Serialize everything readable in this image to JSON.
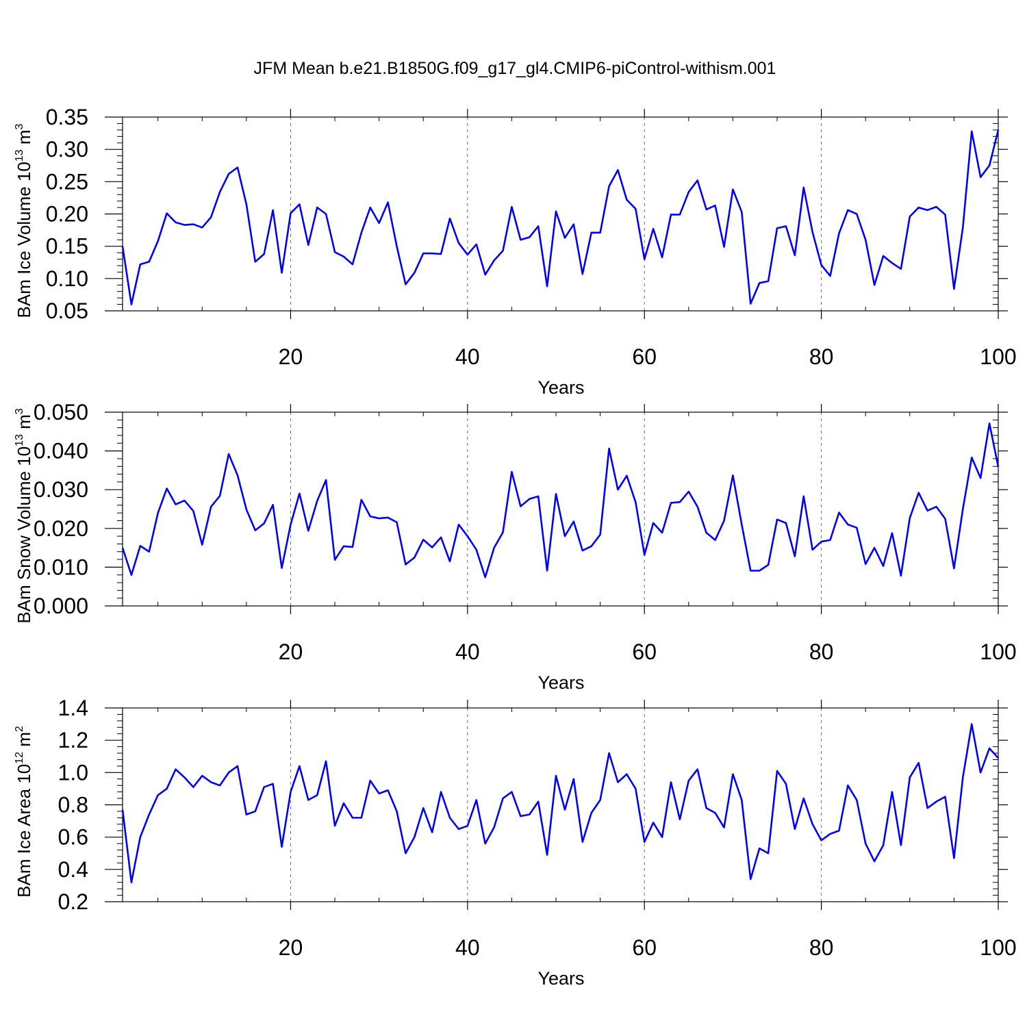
{
  "title": "JFM Mean b.e21.B1850G.f09_g17_gl4.CMIP6-piControl-withism.001",
  "colors": {
    "line": "#0000ff",
    "axis": "#000000",
    "grid": "#666666"
  },
  "chart_data": [
    {
      "type": "line",
      "title": "JFM Mean b.e21.B1850G.f09_g17_gl4.CMIP6-piControl-withism.001",
      "xlabel": "Years",
      "ylabel_main": "BAm Ice Volume 10",
      "ylabel_exp": "13",
      "ylabel_unit": " m",
      "ylabel_unit_exp": "3",
      "xlim": [
        1,
        100
      ],
      "ylim": [
        0.05,
        0.35
      ],
      "xticks": [
        20,
        40,
        60,
        80,
        100
      ],
      "xtick_labels": [
        "20",
        "40",
        "60",
        "80",
        "100"
      ],
      "yticks": [
        0.05,
        0.1,
        0.15,
        0.2,
        0.25,
        0.3,
        0.35
      ],
      "ytick_labels": [
        "0.05",
        "0.10",
        "0.15",
        "0.20",
        "0.25",
        "0.30",
        "0.35"
      ],
      "grid": "x-dashed",
      "series": [
        {
          "name": "BAm Ice Volume",
          "values": [
            0.15,
            0.06,
            0.122,
            0.126,
            0.158,
            0.201,
            0.187,
            0.183,
            0.184,
            0.179,
            0.195,
            0.234,
            0.262,
            0.272,
            0.215,
            0.126,
            0.138,
            0.206,
            0.109,
            0.201,
            0.215,
            0.152,
            0.21,
            0.2,
            0.141,
            0.134,
            0.122,
            0.171,
            0.21,
            0.186,
            0.218,
            0.15,
            0.091,
            0.109,
            0.139,
            0.139,
            0.138,
            0.193,
            0.155,
            0.137,
            0.153,
            0.106,
            0.128,
            0.143,
            0.211,
            0.16,
            0.164,
            0.181,
            0.088,
            0.204,
            0.163,
            0.184,
            0.107,
            0.171,
            0.171,
            0.243,
            0.268,
            0.222,
            0.208,
            0.13,
            0.177,
            0.133,
            0.199,
            0.199,
            0.234,
            0.252,
            0.207,
            0.213,
            0.149,
            0.238,
            0.203,
            0.061,
            0.093,
            0.096,
            0.178,
            0.181,
            0.136,
            0.241,
            0.172,
            0.121,
            0.104,
            0.17,
            0.206,
            0.2,
            0.16,
            0.09,
            0.135,
            0.124,
            0.115,
            0.196,
            0.21,
            0.206,
            0.211,
            0.199,
            0.084,
            0.179,
            0.328,
            0.257,
            0.275,
            0.33
          ]
        }
      ]
    },
    {
      "type": "line",
      "xlabel": "Years",
      "ylabel_main": "BAm Snow Volume 10",
      "ylabel_exp": "13",
      "ylabel_unit": " m",
      "ylabel_unit_exp": "3",
      "xlim": [
        1,
        100
      ],
      "ylim": [
        0.0,
        0.05
      ],
      "xticks": [
        20,
        40,
        60,
        80,
        100
      ],
      "xtick_labels": [
        "20",
        "40",
        "60",
        "80",
        "100"
      ],
      "yticks": [
        0.0,
        0.01,
        0.02,
        0.03,
        0.04,
        0.05
      ],
      "ytick_labels": [
        "0.000",
        "0.010",
        "0.020",
        "0.030",
        "0.040",
        "0.050"
      ],
      "grid": "x-dashed",
      "series": [
        {
          "name": "BAm Snow Volume",
          "values": [
            0.015,
            0.008,
            0.0155,
            0.014,
            0.024,
            0.0303,
            0.0262,
            0.0272,
            0.0245,
            0.0158,
            0.0256,
            0.0284,
            0.0392,
            0.0337,
            0.0249,
            0.0195,
            0.0213,
            0.0261,
            0.0098,
            0.021,
            0.029,
            0.0194,
            0.0271,
            0.0325,
            0.0119,
            0.0154,
            0.0152,
            0.0274,
            0.0231,
            0.0226,
            0.0228,
            0.0216,
            0.0107,
            0.0125,
            0.0171,
            0.0151,
            0.0177,
            0.0115,
            0.021,
            0.018,
            0.0145,
            0.0074,
            0.015,
            0.019,
            0.0346,
            0.0257,
            0.0276,
            0.0283,
            0.0091,
            0.0289,
            0.018,
            0.0218,
            0.0143,
            0.0154,
            0.0184,
            0.0406,
            0.03,
            0.0336,
            0.0268,
            0.0132,
            0.0214,
            0.0189,
            0.0266,
            0.0268,
            0.0295,
            0.0256,
            0.0189,
            0.017,
            0.022,
            0.0337,
            0.021,
            0.0091,
            0.0091,
            0.0106,
            0.0223,
            0.0214,
            0.0128,
            0.0283,
            0.0145,
            0.0166,
            0.017,
            0.0241,
            0.021,
            0.0202,
            0.0108,
            0.015,
            0.0103,
            0.0188,
            0.0078,
            0.0227,
            0.0292,
            0.0246,
            0.0256,
            0.0225,
            0.0097,
            0.025,
            0.0383,
            0.033,
            0.0471,
            0.0359
          ]
        }
      ]
    },
    {
      "type": "line",
      "xlabel": "Years",
      "ylabel_main": "BAm Ice Area 10",
      "ylabel_exp": "12",
      "ylabel_unit": " m",
      "ylabel_unit_exp": "2",
      "xlim": [
        1,
        100
      ],
      "ylim": [
        0.2,
        1.4
      ],
      "xticks": [
        20,
        40,
        60,
        80,
        100
      ],
      "xtick_labels": [
        "20",
        "40",
        "60",
        "80",
        "100"
      ],
      "yticks": [
        0.2,
        0.4,
        0.6,
        0.8,
        1.0,
        1.2,
        1.4
      ],
      "ytick_labels": [
        "0.2",
        "0.4",
        "0.6",
        "0.8",
        "1.0",
        "1.2",
        "1.4"
      ],
      "grid": "x-dashed",
      "series": [
        {
          "name": "BAm Ice Area",
          "values": [
            0.77,
            0.32,
            0.6,
            0.74,
            0.86,
            0.9,
            1.02,
            0.97,
            0.91,
            0.98,
            0.94,
            0.92,
            1.0,
            1.04,
            0.74,
            0.76,
            0.91,
            0.93,
            0.54,
            0.88,
            1.04,
            0.83,
            0.86,
            1.07,
            0.67,
            0.81,
            0.72,
            0.72,
            0.95,
            0.87,
            0.89,
            0.76,
            0.5,
            0.6,
            0.78,
            0.63,
            0.88,
            0.72,
            0.65,
            0.67,
            0.83,
            0.56,
            0.66,
            0.84,
            0.88,
            0.73,
            0.74,
            0.82,
            0.49,
            0.98,
            0.77,
            0.96,
            0.57,
            0.75,
            0.83,
            1.12,
            0.94,
            0.99,
            0.9,
            0.57,
            0.69,
            0.6,
            0.94,
            0.71,
            0.95,
            1.02,
            0.78,
            0.75,
            0.66,
            0.99,
            0.83,
            0.34,
            0.53,
            0.5,
            1.01,
            0.93,
            0.65,
            0.84,
            0.68,
            0.58,
            0.62,
            0.64,
            0.92,
            0.83,
            0.56,
            0.45,
            0.55,
            0.88,
            0.55,
            0.97,
            1.06,
            0.78,
            0.82,
            0.85,
            0.47,
            0.97,
            1.3,
            1.0,
            1.15,
            1.09
          ]
        }
      ]
    }
  ]
}
